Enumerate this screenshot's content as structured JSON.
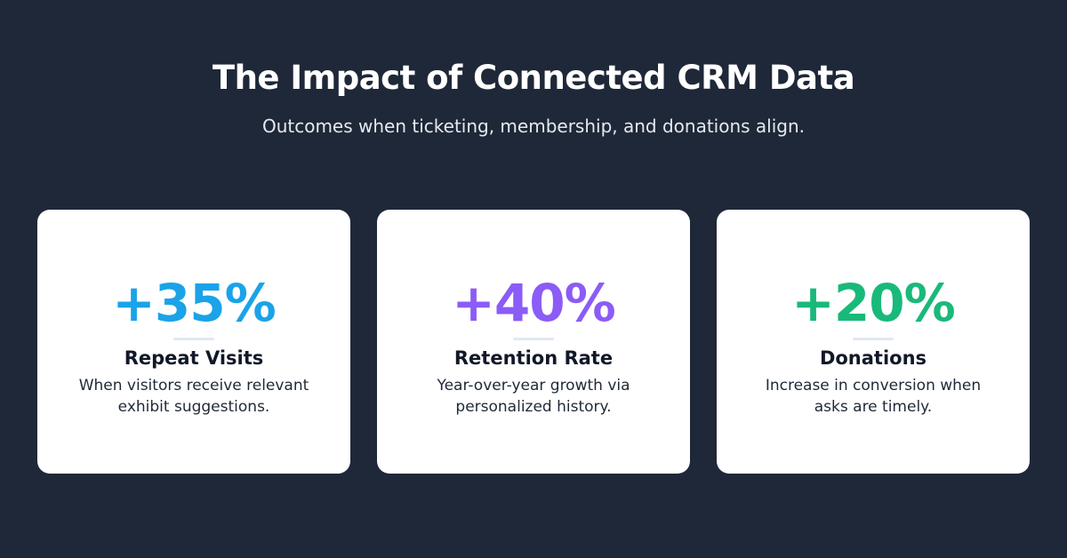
{
  "header": {
    "title": "The Impact of Connected CRM Data",
    "subtitle": "Outcomes when ticketing, membership, and donations align."
  },
  "cards": [
    {
      "stat": "+35%",
      "label": "Repeat Visits",
      "description": "When visitors receive relevant exhibit suggestions."
    },
    {
      "stat": "+40%",
      "label": "Retention Rate",
      "description": "Year-over-year growth via personalized history."
    },
    {
      "stat": "+20%",
      "label": "Donations",
      "description": "Increase in conversion when asks are timely."
    }
  ]
}
